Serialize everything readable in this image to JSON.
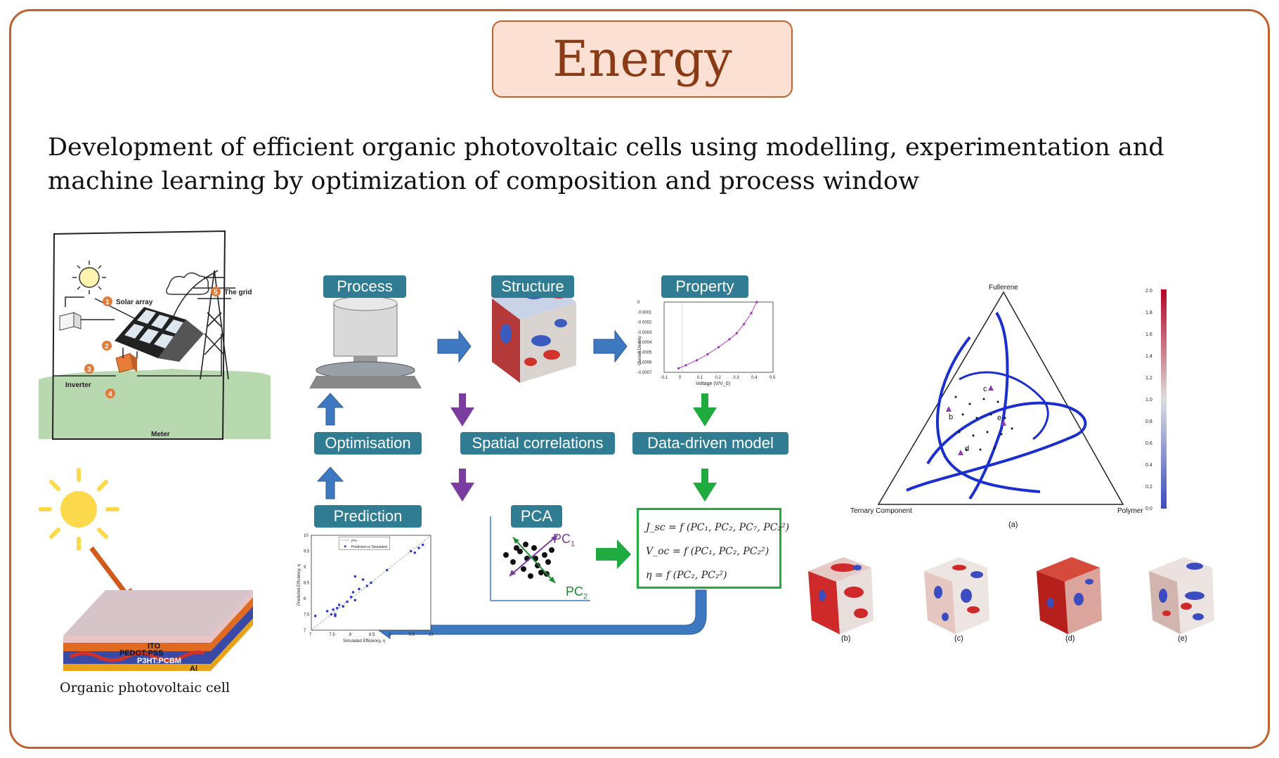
{
  "title": "Energy",
  "subtitle": "Development of efficient organic photovoltaic cells using modelling, experimentation and machine learning by optimization of composition and process window",
  "pv_system": {
    "labels": [
      "Solar array",
      "The grid",
      "Inverter",
      "Meter"
    ],
    "numbers": [
      "1",
      "2",
      "3",
      "4",
      "5"
    ]
  },
  "cell": {
    "layers": [
      "ITO",
      "PEDOT:PSS",
      "P3HT:PCBM",
      "Al"
    ],
    "caption": "Organic photovoltaic cell"
  },
  "workflow": {
    "process": "Process",
    "structure": "Structure",
    "property": "Property",
    "optimisation": "Optimisation",
    "spatial": "Spatial correlations",
    "data_model": "Data-driven model",
    "prediction": "Prediction",
    "pca": "PCA",
    "pc1": "PC",
    "pc1_sub": "1",
    "pc2": "PC",
    "pc2_sub": "2",
    "equations": [
      "J_sc = f (PC₁, PC₂, PC₇, PC₂²)",
      "V_oc = f (PC₁, PC₂, PC₂²)",
      "η = f (PC₂, PC₂²)"
    ]
  },
  "ternary": {
    "vertex_top": "Fullerene",
    "vertex_left": "Ternary Component",
    "vertex_right": "Polymer",
    "caption": "(a)",
    "points": [
      "b",
      "c",
      "d",
      "e"
    ],
    "colorbar_ticks": [
      "2.0",
      "1.8",
      "1.6",
      "1.4",
      "1.2",
      "1.0",
      "0.8",
      "0.6",
      "0.4",
      "0.2",
      "0.0"
    ],
    "cube_captions": [
      "(b)",
      "(c)",
      "(d)",
      "(e)"
    ]
  },
  "chart_data": [
    {
      "type": "line",
      "xlabel": "Voltage (V/V_0)",
      "ylabel": "Current Density",
      "xlim": [
        -0.1,
        0.5
      ],
      "ylim": [
        -0.0007,
        0
      ],
      "x_ticks": [
        "-0.1",
        "0",
        "0.1",
        "0.2",
        "0.3",
        "0.4",
        "0.5"
      ],
      "y_ticks": [
        "0",
        "-0.0001",
        "-0.0002",
        "-0.0003",
        "-0.0004",
        "-0.0005",
        "-0.0006",
        "-0.0007"
      ],
      "x": [
        -0.02,
        0.02,
        0.08,
        0.14,
        0.2,
        0.26,
        0.3,
        0.34,
        0.38,
        0.41
      ],
      "y": [
        -0.00066,
        -0.00063,
        -0.00058,
        -0.00052,
        -0.00045,
        -0.00037,
        -0.00031,
        -0.00022,
        -0.00011,
        0
      ]
    },
    {
      "type": "scatter",
      "xlabel": "Simulated Efficiency, η",
      "ylabel": "Predicted Efficiency, η",
      "xlim": [
        7,
        10
      ],
      "ylim": [
        7,
        10
      ],
      "x_ticks": [
        "7",
        "7.5",
        "8",
        "8.5",
        "9",
        "9.5",
        "10"
      ],
      "y_ticks": [
        "7",
        "7.5",
        "8",
        "8.5",
        "9",
        "9.5",
        "10"
      ],
      "legend": [
        "y=x",
        "Predicted vs Simulated"
      ],
      "x": [
        7.1,
        7.4,
        7.5,
        7.55,
        7.6,
        7.65,
        7.7,
        7.8,
        7.9,
        8.0,
        8.05,
        8.1,
        8.2,
        8.3,
        8.4,
        8.5,
        8.9,
        9.5,
        9.6,
        9.7,
        9.8,
        8.1,
        7.6
      ],
      "y": [
        7.45,
        7.6,
        7.5,
        7.65,
        7.45,
        7.7,
        7.8,
        7.75,
        7.9,
        8.05,
        8.2,
        8.7,
        8.3,
        8.6,
        8.4,
        8.5,
        8.9,
        9.5,
        9.45,
        9.6,
        9.7,
        7.95,
        7.5
      ]
    }
  ]
}
